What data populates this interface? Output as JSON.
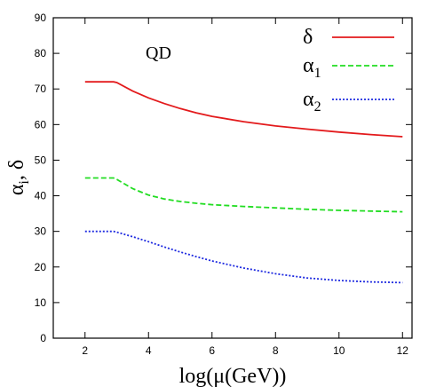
{
  "chart_data": {
    "type": "line",
    "title": "",
    "annotation": "QD",
    "xlabel": "log(μ(GeV))",
    "ylabel": {
      "main": "α",
      "sub": "i",
      "rest": ", δ"
    },
    "xlim": [
      1,
      12.3
    ],
    "ylim": [
      0,
      90
    ],
    "xticks": [
      2,
      4,
      6,
      8,
      10,
      12
    ],
    "yticks": [
      0,
      10,
      20,
      30,
      40,
      50,
      60,
      70,
      80,
      90
    ],
    "grid": false,
    "legend_position": "top-right",
    "series": [
      {
        "name": "δ",
        "label_main": "δ",
        "label_sub": "",
        "color": "#e31a1c",
        "dash": "solid",
        "x": [
          2,
          2.5,
          2.9,
          3.0,
          3.5,
          4,
          4.5,
          5,
          5.5,
          6,
          7,
          8,
          9,
          10,
          11,
          12
        ],
        "y": [
          72,
          72,
          72,
          71.8,
          69.4,
          67.5,
          65.9,
          64.5,
          63.3,
          62.3,
          60.8,
          59.6,
          58.7,
          57.9,
          57.2,
          56.6
        ]
      },
      {
        "name": "α1",
        "label_main": "α",
        "label_sub": "1",
        "color": "#22dd22",
        "dash": "6,3",
        "x": [
          2,
          2.5,
          2.9,
          3.0,
          3.5,
          4,
          4.5,
          5,
          5.5,
          6,
          7,
          8,
          9,
          10,
          11,
          12
        ],
        "y": [
          45,
          45,
          45,
          44.6,
          42,
          40.2,
          39.1,
          38.4,
          37.9,
          37.5,
          37,
          36.6,
          36.2,
          35.9,
          35.7,
          35.5
        ]
      },
      {
        "name": "α2",
        "label_main": "α",
        "label_sub": "2",
        "color": "#1f2be0",
        "dash": "2,2",
        "x": [
          2,
          2.5,
          2.9,
          3.0,
          3.5,
          4,
          4.5,
          5,
          5.5,
          6,
          7,
          8,
          9,
          10,
          11,
          12
        ],
        "y": [
          30,
          30,
          30,
          29.8,
          28.5,
          27.1,
          25.6,
          24.2,
          22.9,
          21.7,
          19.7,
          18.1,
          16.9,
          16.2,
          15.8,
          15.6
        ]
      }
    ]
  }
}
